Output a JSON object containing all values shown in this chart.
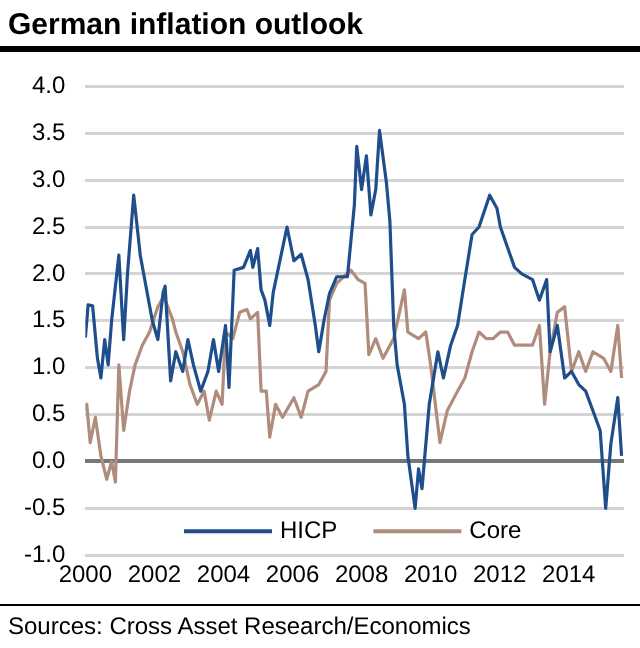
{
  "chart_data": {
    "type": "line",
    "title": "German inflation outlook",
    "annotations": [
      "Sources: Cross Asset Research/Economics"
    ],
    "xlim": [
      2000,
      2015.6
    ],
    "xticks": [
      2000,
      2002,
      2004,
      2006,
      2008,
      2010,
      2012,
      2014
    ],
    "ylim": [
      -1,
      4
    ],
    "yticks": [
      {
        "value": -1,
        "label": "-1.0"
      },
      {
        "value": -0.5,
        "label": "-0.5"
      },
      {
        "value": 0,
        "label": "0.0"
      },
      {
        "value": 0.5,
        "label": "0.5"
      },
      {
        "value": 1,
        "label": "1.0"
      },
      {
        "value": 1.5,
        "label": "1.5"
      },
      {
        "value": 2,
        "label": "2.0"
      },
      {
        "value": 2.5,
        "label": "2.5"
      },
      {
        "value": 3,
        "label": "3.0"
      },
      {
        "value": 3.5,
        "label": "3.5"
      },
      {
        "value": 4,
        "label": "4.0"
      }
    ],
    "grid": "y",
    "legend": "bottom",
    "marker": "none",
    "line_style": "solid",
    "series": [
      {
        "name": "HICP",
        "color": "#1f4e8c",
        "x": [
          2000.0,
          2000.08,
          2000.21,
          2000.35,
          2000.45,
          2000.56,
          2000.66,
          2000.76,
          2000.97,
          2001.11,
          2001.22,
          2001.4,
          2001.59,
          2001.79,
          2001.94,
          2002.1,
          2002.25,
          2002.31,
          2002.47,
          2002.62,
          2002.82,
          2002.97,
          2003.13,
          2003.34,
          2003.55,
          2003.71,
          2003.86,
          2004.06,
          2004.16,
          2004.31,
          2004.58,
          2004.78,
          2004.85,
          2004.99,
          2005.09,
          2005.2,
          2005.34,
          2005.44,
          2005.84,
          2006.04,
          2006.25,
          2006.45,
          2006.66,
          2006.76,
          2006.91,
          2007.07,
          2007.28,
          2007.59,
          2007.79,
          2007.86,
          2008.0,
          2008.14,
          2008.27,
          2008.41,
          2008.52,
          2008.72,
          2008.82,
          2008.93,
          2009.03,
          2009.24,
          2009.34,
          2009.55,
          2009.65,
          2009.75,
          2009.96,
          2010.21,
          2010.37,
          2010.58,
          2010.78,
          2010.99,
          2011.2,
          2011.4,
          2011.71,
          2011.92,
          2012.02,
          2012.23,
          2012.43,
          2012.64,
          2012.95,
          2013.15,
          2013.36,
          2013.46,
          2013.67,
          2013.88,
          2014.08,
          2014.29,
          2014.49,
          2014.7,
          2014.91,
          2015.07,
          2015.22,
          2015.42,
          2015.53
        ],
        "values": [
          1.32,
          1.67,
          1.66,
          1.1,
          0.89,
          1.3,
          1.03,
          1.5,
          2.2,
          1.3,
          2.0,
          2.84,
          2.2,
          1.8,
          1.5,
          1.3,
          1.8,
          1.87,
          0.86,
          1.17,
          0.96,
          1.3,
          1.03,
          0.75,
          0.96,
          1.3,
          0.96,
          1.45,
          0.79,
          2.04,
          2.07,
          2.25,
          2.07,
          2.27,
          1.83,
          1.72,
          1.45,
          1.8,
          2.5,
          2.14,
          2.21,
          1.94,
          1.45,
          1.17,
          1.5,
          1.79,
          1.97,
          1.97,
          2.73,
          3.36,
          2.9,
          3.26,
          2.63,
          2.9,
          3.53,
          2.97,
          2.56,
          1.45,
          1.03,
          0.61,
          0.06,
          -0.5,
          -0.08,
          -0.29,
          0.61,
          1.17,
          0.89,
          1.24,
          1.45,
          1.94,
          2.42,
          2.5,
          2.84,
          2.7,
          2.5,
          2.28,
          2.07,
          2.0,
          1.94,
          1.72,
          1.94,
          1.17,
          1.45,
          0.89,
          0.96,
          0.82,
          0.75,
          0.54,
          0.33,
          -0.5,
          0.19,
          0.68,
          0.06
        ]
      },
      {
        "name": "Core",
        "color": "#b08c7c",
        "x": [
          2000.0,
          2000.04,
          2000.14,
          2000.29,
          2000.45,
          2000.62,
          2000.76,
          2000.87,
          2000.97,
          2001.11,
          2001.28,
          2001.44,
          2001.65,
          2001.86,
          2002.1,
          2002.27,
          2002.52,
          2002.62,
          2002.82,
          2003.03,
          2003.24,
          2003.44,
          2003.59,
          2003.79,
          2003.96,
          2004.06,
          2004.27,
          2004.47,
          2004.68,
          2004.78,
          2004.99,
          2005.09,
          2005.24,
          2005.34,
          2005.51,
          2005.71,
          2006.04,
          2006.25,
          2006.45,
          2006.76,
          2006.97,
          2007.07,
          2007.28,
          2007.69,
          2007.9,
          2008.1,
          2008.21,
          2008.41,
          2008.62,
          2008.93,
          2009.24,
          2009.34,
          2009.65,
          2009.86,
          2010.0,
          2010.27,
          2010.48,
          2010.78,
          2010.99,
          2011.2,
          2011.4,
          2011.61,
          2011.81,
          2012.02,
          2012.23,
          2012.43,
          2012.74,
          2012.95,
          2013.15,
          2013.3,
          2013.46,
          2013.67,
          2013.88,
          2014.08,
          2014.29,
          2014.49,
          2014.7,
          2015.01,
          2015.22,
          2015.42,
          2015.53
        ],
        "values": [
          0.54,
          0.61,
          0.2,
          0.47,
          0.06,
          -0.19,
          0.0,
          -0.22,
          1.03,
          0.33,
          0.75,
          1.03,
          1.24,
          1.38,
          1.65,
          1.76,
          1.52,
          1.38,
          1.17,
          0.82,
          0.61,
          0.75,
          0.44,
          0.75,
          0.61,
          1.38,
          1.31,
          1.59,
          1.62,
          1.52,
          1.59,
          0.75,
          0.75,
          0.26,
          0.61,
          0.47,
          0.68,
          0.47,
          0.75,
          0.82,
          0.96,
          1.72,
          1.9,
          2.04,
          1.94,
          1.9,
          1.14,
          1.31,
          1.1,
          1.31,
          1.83,
          1.38,
          1.31,
          1.38,
          1.03,
          0.2,
          0.54,
          0.75,
          0.89,
          1.17,
          1.38,
          1.31,
          1.31,
          1.38,
          1.38,
          1.24,
          1.24,
          1.24,
          1.45,
          0.61,
          1.17,
          1.59,
          1.65,
          0.96,
          1.17,
          0.96,
          1.17,
          1.1,
          0.96,
          1.45,
          0.89
        ]
      }
    ]
  }
}
